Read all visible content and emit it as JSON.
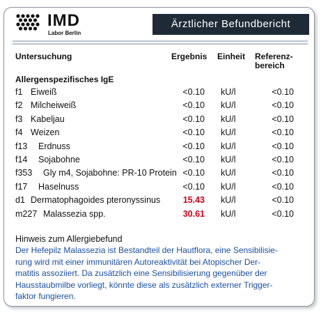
{
  "header": {
    "logo": "IMD",
    "logo_sub": "Labor Berlin",
    "title": "Ärztlicher Befundbericht"
  },
  "table": {
    "columns": [
      "Untersuchung",
      "Ergebnis",
      "Einheit",
      "Referenz-\nbereich"
    ],
    "group": "Allergenspezifisches IgE",
    "rows": [
      {
        "code": "f1",
        "name": "Eiweiß",
        "result": "<0.10",
        "unit": "kU/l",
        "reference": "<0.10"
      },
      {
        "code": "f2",
        "name": "Milcheiweiß",
        "result": "<0.10",
        "unit": "kU/l",
        "reference": "<0.10"
      },
      {
        "code": "f3",
        "name": "Kabeljau",
        "result": "<0.10",
        "unit": "kU/l",
        "reference": "<0.10"
      },
      {
        "code": "f4",
        "name": "Weizen",
        "result": "<0.10",
        "unit": "kU/l",
        "reference": "<0.10"
      },
      {
        "code": "f13",
        "name": "Erdnuss",
        "result": "<0.10",
        "unit": "kU/l",
        "reference": "<0.10"
      },
      {
        "code": "f14",
        "name": "Sojabohne",
        "result": "<0.10",
        "unit": "kU/l",
        "reference": "<0.10"
      },
      {
        "code": "f353",
        "name": "Gly m4, Sojabohne: PR-10 Protein",
        "result": "<0.10",
        "unit": "kU/l",
        "reference": "<0.10"
      },
      {
        "code": "f17",
        "name": "Haselnuss",
        "result": "<0.10",
        "unit": "kU/l",
        "reference": "<0.10"
      },
      {
        "code": "d1",
        "name": "Dermatophagoides pteronyssinus",
        "result": "15.43",
        "unit": "kU/l",
        "reference": "<0.10",
        "color": "#d0021b"
      },
      {
        "code": "m227",
        "name": "Malassezia spp.",
        "result": "30.61",
        "unit": "kU/l",
        "reference": "<0.10",
        "color": "#d0021b"
      }
    ]
  },
  "note": {
    "title": "Hinweis zum Allergiebefund",
    "lines": [
      "Der Hefepilz Malassezia ist Bestandteil der Hautflora, eine Sensibilisie-",
      "rung wird mit einer immunitären Autoreaktivität bei Atopischer Der-",
      "matitis assoziiert. Da zusätzlich eine Sensibilisierung gegenüber der",
      "Hausstaubmilbe vorliegt, könnte diese als zusätzlich externer Trigger-",
      "faktor fungieren."
    ]
  }
}
